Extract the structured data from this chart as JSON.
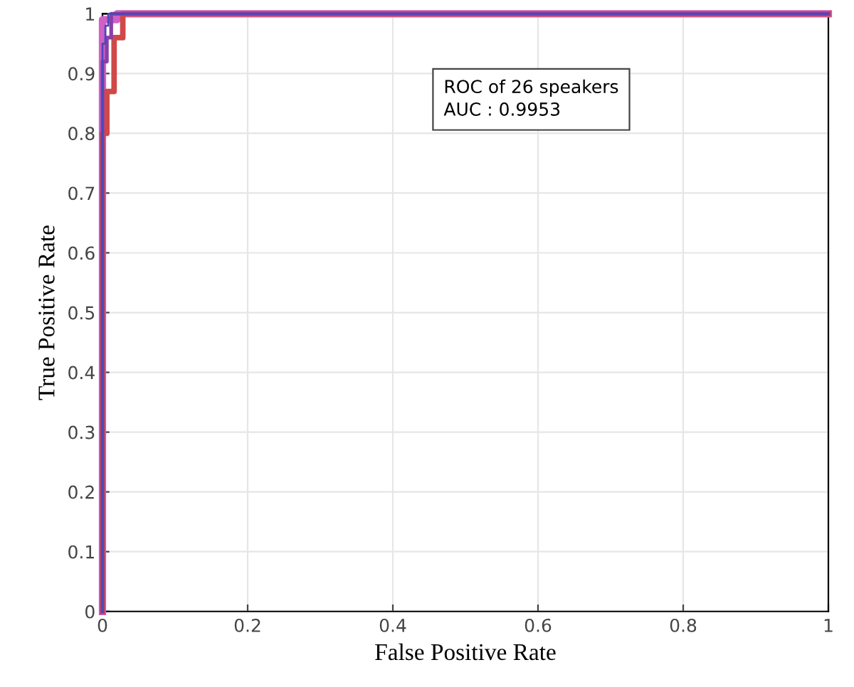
{
  "chart_data": {
    "type": "step",
    "xlabel": "False Positive Rate",
    "ylabel": "True Positive Rate",
    "annotations": [
      "ROC of 26 speakers",
      "AUC : 0.9953"
    ],
    "series": [
      {
        "color": "#4a4ab8",
        "x": [
          0,
          0,
          0.004,
          0.004,
          0.008,
          0.008,
          1
        ],
        "values": [
          0,
          0.95,
          0.95,
          0.98,
          0.98,
          1,
          1
        ]
      },
      {
        "color": "#8a3fa6",
        "x": [
          0,
          0,
          0.006,
          0.006,
          0.012,
          0.012,
          1
        ],
        "values": [
          0,
          0.92,
          0.92,
          0.96,
          0.96,
          1,
          1
        ]
      },
      {
        "color": "#d04848",
        "x": [
          0,
          0,
          0.006,
          0.006,
          0.016,
          0.016,
          0.028,
          0.028,
          1
        ],
        "values": [
          0,
          0.8,
          0.8,
          0.87,
          0.87,
          0.96,
          0.96,
          1,
          1
        ]
      },
      {
        "color": "#d060c8",
        "x": [
          0,
          0,
          0.02,
          0.02,
          1
        ],
        "values": [
          0,
          0.99,
          0.99,
          1,
          1
        ]
      }
    ],
    "xlim": [
      0,
      1
    ],
    "ylim": [
      0,
      1
    ],
    "xticks": [
      0,
      0.2,
      0.4,
      0.6,
      0.8,
      1
    ],
    "yticks": [
      0,
      0.1,
      0.2,
      0.3,
      0.4,
      0.5,
      0.6,
      0.7,
      0.8,
      0.9,
      1
    ],
    "grid": true
  }
}
